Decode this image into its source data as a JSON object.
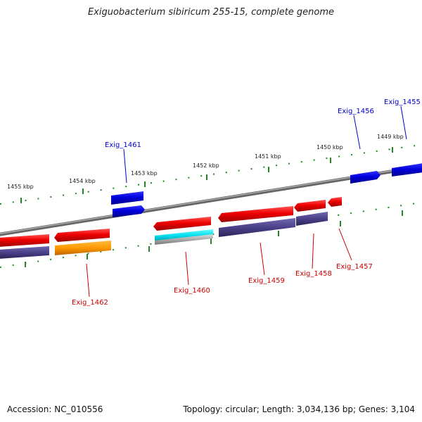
{
  "header": {
    "title": "Exiguobacterium sibiricum 255-15, complete genome"
  },
  "footer": {
    "accession": "Accession: NC_010556",
    "summary": "Topology: circular; Length: 3,034,136 bp; Genes: 3,104"
  },
  "ticks": {
    "labels": [
      "1455 kbp",
      "1454 kbp",
      "1453 kbp",
      "1452 kbp",
      "1451 kbp",
      "1450 kbp",
      "1449 kbp"
    ]
  },
  "genes": {
    "forward": [
      "Exig_1461",
      "Exig_1456",
      "Exig_1455"
    ],
    "reverse": [
      "Exig_1462",
      "Exig_1460",
      "Exig_1459",
      "Exig_1458",
      "Exig_1457"
    ]
  },
  "colors": {
    "forward_strand": "#0000dd",
    "reverse_strand": "#ee0000",
    "orange_feature": "#ff9900",
    "cyan_feature": "#00ddee",
    "purple_feature": "#4a4088",
    "grey_feature": "#aaaaaa",
    "tick_green": "#228822",
    "backbone": "#888888"
  }
}
